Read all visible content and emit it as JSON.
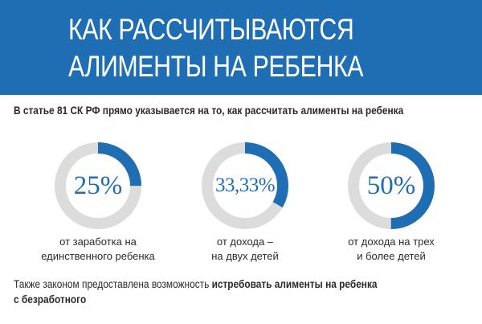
{
  "header": {
    "title_line_1": "КАК РАССЧИТЫВАЮТСЯ",
    "title_line_2": "АЛИМЕНТЫ НА РЕБЕНКА",
    "background_color": "#1f6eb4",
    "text_color": "#ffffff"
  },
  "intro": "В статье 81 СК РФ прямо указывается на то, как рассчитать алименты на ребенка",
  "rates": [
    {
      "value_label": "25%",
      "fraction": 0.25,
      "caption_line_1": "от заработка на",
      "caption_line_2": "единственного ребенка"
    },
    {
      "value_label": "33,33%",
      "fraction": 0.3333,
      "caption_line_1": "от дохода –",
      "caption_line_2": "на двух детей"
    },
    {
      "value_label": "50%",
      "fraction": 0.5,
      "caption_line_1": "от дохода на трех",
      "caption_line_2": "и более детей"
    }
  ],
  "ring_colors": {
    "filled": "#1f6eb4",
    "track": "#dcdcdc"
  },
  "footer": {
    "text_plain": "Также законом предоставлена возможность ",
    "text_bold": "истребовать алименты на ребенка",
    "line_2_bold": "с безработного"
  }
}
